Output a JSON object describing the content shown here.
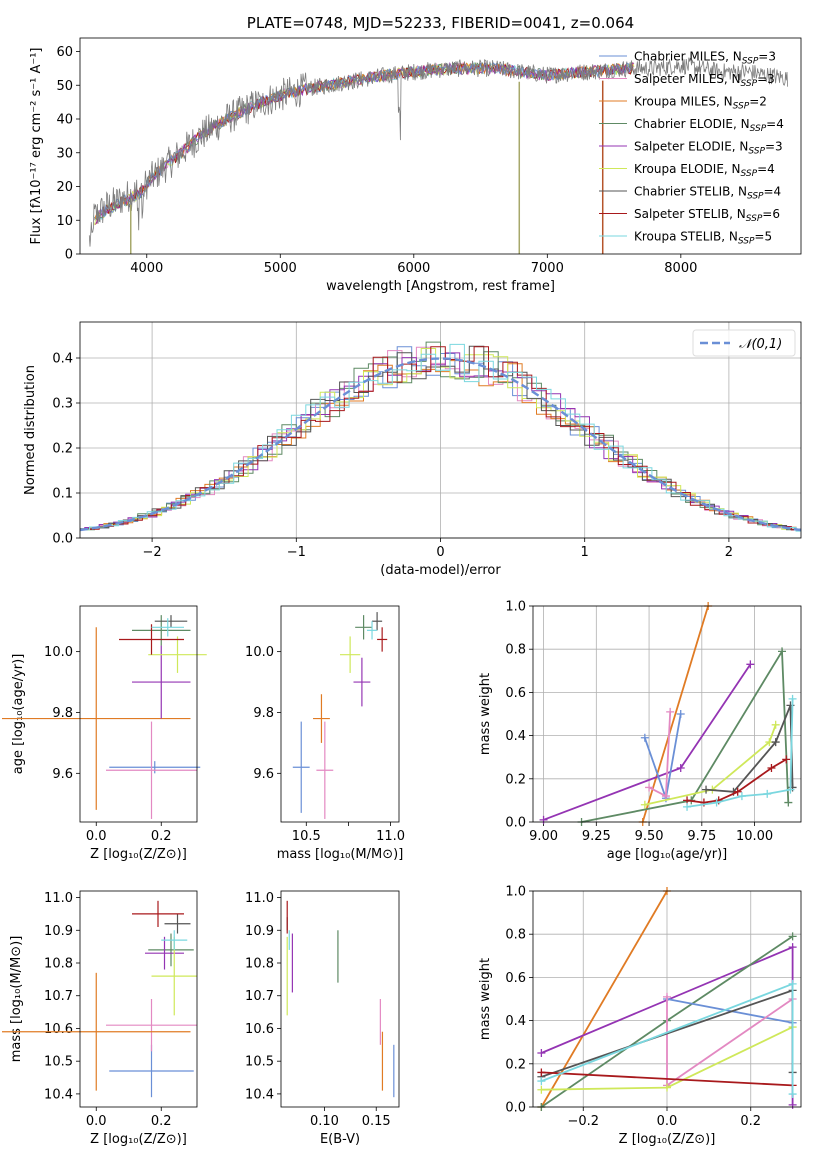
{
  "colors": {
    "Chabrier MILES": "#6a8fd6",
    "Salpeter MILES": "#e389c2",
    "Kroupa MILES": "#e07b24",
    "Chabrier ELODIE": "#5e8a64",
    "Salpeter ELODIE": "#9434b3",
    "Kroupa ELODIE": "#cfe85a",
    "Chabrier STELIB": "#555555",
    "Salpeter STELIB": "#a8191c",
    "Kroupa STELIB": "#7ad7df"
  },
  "chart_data": [
    {
      "id": "spectrum",
      "type": "line",
      "title": "PLATE=0748, MJD=52233, FIBERID=0041, z=0.064",
      "xlabel": "wavelength [Angstrom, rest frame]",
      "ylabel": "Flux [fλ10⁻¹⁷ erg cm⁻² s⁻¹ A⁻¹]",
      "xlim": [
        3500,
        8900
      ],
      "ylim": [
        0,
        64
      ],
      "xticks": [
        4000,
        5000,
        6000,
        7000,
        8000
      ],
      "yticks": [
        0,
        10,
        20,
        30,
        40,
        50,
        60
      ],
      "legend_position": "right",
      "legend": [
        {
          "label": "Chabrier MILES, N",
          "sub": "SSP",
          "n": "=3"
        },
        {
          "label": "Salpeter MILES, N",
          "sub": "SSP",
          "n": "=3"
        },
        {
          "label": "Kroupa MILES, N",
          "sub": "SSP",
          "n": "=2"
        },
        {
          "label": "Chabrier ELODIE, N",
          "sub": "SSP",
          "n": "=4"
        },
        {
          "label": "Salpeter ELODIE, N",
          "sub": "SSP",
          "n": "=3"
        },
        {
          "label": "Kroupa ELODIE, N",
          "sub": "SSP",
          "n": "=4"
        },
        {
          "label": "Chabrier STELIB, N",
          "sub": "SSP",
          "n": "=4"
        },
        {
          "label": "Salpeter STELIB, N",
          "sub": "SSP",
          "n": "=6"
        },
        {
          "label": "Kroupa STELIB, N",
          "sub": "SSP",
          "n": "=5"
        }
      ],
      "continuum": [
        [
          3570,
          10
        ],
        [
          3700,
          14
        ],
        [
          3850,
          17
        ],
        [
          3950,
          19
        ],
        [
          4050,
          23
        ],
        [
          4200,
          28
        ],
        [
          4400,
          35
        ],
        [
          4600,
          40
        ],
        [
          4800,
          44
        ],
        [
          5000,
          47
        ],
        [
          5200,
          49
        ],
        [
          5500,
          51
        ],
        [
          5800,
          53
        ],
        [
          6000,
          54
        ],
        [
          6300,
          55
        ],
        [
          6600,
          55
        ],
        [
          7000,
          53
        ],
        [
          7300,
          54
        ],
        [
          7600,
          55
        ],
        [
          7800,
          55
        ],
        [
          8000,
          56
        ],
        [
          8300,
          54
        ],
        [
          8500,
          54
        ],
        [
          8800,
          52
        ]
      ]
    },
    {
      "id": "residual-histogram",
      "type": "histogram",
      "xlabel": "(data-model)/error",
      "ylabel": "Normed distribution",
      "xlim": [
        -2.5,
        2.5
      ],
      "ylim": [
        0,
        0.48
      ],
      "xticks": [
        -2,
        -1,
        0,
        1,
        2
      ],
      "yticks": [
        0.0,
        0.1,
        0.2,
        0.3,
        0.4
      ],
      "grid": true,
      "legend_position": "top-right",
      "reference_curve": {
        "label": "𝒩(0,1)",
        "mean": 0,
        "sigma": 1
      }
    },
    {
      "id": "Z-vs-age",
      "type": "errorbar",
      "xlabel": "Z [log₁₀(Z/Z⊙)]",
      "ylabel": "age  [log₁₀(age/yr)]",
      "xlim": [
        -0.05,
        0.31
      ],
      "ylim": [
        9.44,
        10.15
      ],
      "xticks": [
        0.0,
        0.2
      ],
      "yticks": [
        9.6,
        9.8,
        10.0
      ],
      "points": [
        {
          "model": "Chabrier MILES",
          "x": 0.18,
          "y": 9.62,
          "xerr": 0.14,
          "yerr": 0.02
        },
        {
          "model": "Salpeter MILES",
          "x": 0.17,
          "y": 9.61,
          "xerr": 0.14,
          "yerr": 0.16
        },
        {
          "model": "Kroupa MILES",
          "x": 0.0,
          "y": 9.78,
          "xerr": 0.29,
          "yerr": 0.3
        },
        {
          "model": "Chabrier ELODIE",
          "x": 0.2,
          "y": 10.07,
          "xerr": 0.09,
          "yerr": 0.05
        },
        {
          "model": "Salpeter ELODIE",
          "x": 0.2,
          "y": 9.9,
          "xerr": 0.09,
          "yerr": 0.12
        },
        {
          "model": "Kroupa ELODIE",
          "x": 0.25,
          "y": 9.99,
          "xerr": 0.09,
          "yerr": 0.06
        },
        {
          "model": "Chabrier STELIB",
          "x": 0.23,
          "y": 10.1,
          "xerr": 0.05,
          "yerr": 0.02
        },
        {
          "model": "Salpeter STELIB",
          "x": 0.17,
          "y": 10.04,
          "xerr": 0.1,
          "yerr": 0.05
        },
        {
          "model": "Kroupa STELIB",
          "x": 0.22,
          "y": 10.08,
          "xerr": 0.05,
          "yerr": 0.03
        }
      ]
    },
    {
      "id": "mass-vs-age",
      "type": "errorbar",
      "xlabel": "mass [log₁₀(M/M⊙)]",
      "ylabel": "",
      "xlim": [
        10.35,
        11.05
      ],
      "ylim": [
        9.44,
        10.15
      ],
      "xticks": [
        10.5,
        10.75,
        11.0
      ],
      "xtick_labels": [
        "10.5",
        "",
        "11.0"
      ],
      "yticks": [
        9.6,
        9.8,
        10.0
      ],
      "points": [
        {
          "model": "Chabrier MILES",
          "x": 10.47,
          "y": 9.62,
          "xerr": 0.05,
          "yerr": 0.15
        },
        {
          "model": "Salpeter MILES",
          "x": 10.61,
          "y": 9.61,
          "xerr": 0.05,
          "yerr": 0.16
        },
        {
          "model": "Kroupa MILES",
          "x": 10.59,
          "y": 9.78,
          "xerr": 0.05,
          "yerr": 0.08
        },
        {
          "model": "Chabrier ELODIE",
          "x": 10.84,
          "y": 10.08,
          "xerr": 0.05,
          "yerr": 0.04
        },
        {
          "model": "Salpeter ELODIE",
          "x": 10.83,
          "y": 9.9,
          "xerr": 0.05,
          "yerr": 0.08
        },
        {
          "model": "Kroupa ELODIE",
          "x": 10.76,
          "y": 9.99,
          "xerr": 0.06,
          "yerr": 0.06
        },
        {
          "model": "Chabrier STELIB",
          "x": 10.92,
          "y": 10.1,
          "xerr": 0.03,
          "yerr": 0.03
        },
        {
          "model": "Salpeter STELIB",
          "x": 10.95,
          "y": 10.04,
          "xerr": 0.03,
          "yerr": 0.04
        },
        {
          "model": "Kroupa STELIB",
          "x": 10.89,
          "y": 10.07,
          "xerr": 0.03,
          "yerr": 0.03
        }
      ]
    },
    {
      "id": "age-vs-weight",
      "type": "line",
      "xlabel": "age  [log₁₀(age/yr)]",
      "ylabel": "mass weight",
      "xlim": [
        8.95,
        10.22
      ],
      "ylim": [
        0,
        1.0
      ],
      "xticks": [
        9.0,
        9.25,
        9.5,
        9.75,
        10.0
      ],
      "yticks": [
        0.0,
        0.2,
        0.4,
        0.6,
        0.8,
        1.0
      ],
      "grid": true,
      "series": [
        {
          "model": "Kroupa MILES",
          "x": [
            9.47,
            9.78
          ],
          "y": [
            0.0,
            1.0
          ]
        },
        {
          "model": "Salpeter ELODIE",
          "x": [
            9.0,
            9.65,
            9.98
          ],
          "y": [
            0.01,
            0.25,
            0.73
          ]
        },
        {
          "model": "Chabrier ELODIE",
          "x": [
            9.18,
            9.7,
            10.13,
            10.16
          ],
          "y": [
            0.0,
            0.1,
            0.79,
            0.09
          ]
        },
        {
          "model": "Chabrier MILES",
          "x": [
            9.48,
            9.58,
            9.65
          ],
          "y": [
            0.39,
            0.11,
            0.5
          ]
        },
        {
          "model": "Salpeter MILES",
          "x": [
            9.5,
            9.58,
            9.6
          ],
          "y": [
            0.16,
            0.12,
            0.51
          ]
        },
        {
          "model": "Kroupa ELODIE",
          "x": [
            9.48,
            9.8,
            10.07,
            10.1
          ],
          "y": [
            0.08,
            0.15,
            0.37,
            0.45
          ]
        },
        {
          "model": "Chabrier STELIB",
          "x": [
            9.77,
            9.9,
            10.1,
            10.17,
            10.18
          ],
          "y": [
            0.15,
            0.14,
            0.37,
            0.54,
            0.16
          ]
        },
        {
          "model": "Salpeter STELIB",
          "x": [
            9.68,
            9.76,
            9.83,
            9.92,
            10.08,
            10.15
          ],
          "y": [
            0.1,
            0.09,
            0.1,
            0.14,
            0.25,
            0.29
          ]
        },
        {
          "model": "Kroupa STELIB",
          "x": [
            9.68,
            9.82,
            9.94,
            10.06,
            10.17,
            10.18
          ],
          "y": [
            0.07,
            0.09,
            0.12,
            0.13,
            0.15,
            0.57
          ]
        }
      ]
    },
    {
      "id": "Z-vs-mass",
      "type": "errorbar",
      "xlabel": "Z [log₁₀(Z/Z⊙)]",
      "ylabel": "mass [log₁₀(M/M⊙)]",
      "xlim": [
        -0.05,
        0.31
      ],
      "ylim": [
        10.36,
        11.02
      ],
      "xticks": [
        0.0,
        0.2
      ],
      "yticks": [
        10.4,
        10.5,
        10.6,
        10.7,
        10.8,
        10.9,
        11.0
      ],
      "points": [
        {
          "model": "Chabrier MILES",
          "x": 0.17,
          "y": 10.47,
          "xerr": 0.13,
          "yerr": 0.08
        },
        {
          "model": "Salpeter MILES",
          "x": 0.17,
          "y": 10.61,
          "xerr": 0.14,
          "yerr": 0.08
        },
        {
          "model": "Kroupa MILES",
          "x": 0.0,
          "y": 10.59,
          "xerr": 0.29,
          "yerr": 0.18
        },
        {
          "model": "Chabrier ELODIE",
          "x": 0.23,
          "y": 10.84,
          "xerr": 0.07,
          "yerr": 0.05
        },
        {
          "model": "Salpeter ELODIE",
          "x": 0.21,
          "y": 10.83,
          "xerr": 0.06,
          "yerr": 0.05
        },
        {
          "model": "Kroupa ELODIE",
          "x": 0.24,
          "y": 10.76,
          "xerr": 0.07,
          "yerr": 0.12
        },
        {
          "model": "Chabrier STELIB",
          "x": 0.25,
          "y": 10.92,
          "xerr": 0.04,
          "yerr": 0.03
        },
        {
          "model": "Salpeter STELIB",
          "x": 0.19,
          "y": 10.95,
          "xerr": 0.08,
          "yerr": 0.04
        },
        {
          "model": "Kroupa STELIB",
          "x": 0.24,
          "y": 10.87,
          "xerr": 0.04,
          "yerr": 0.03
        }
      ]
    },
    {
      "id": "EBV-vs-mass",
      "type": "errorbar",
      "xlabel": "E(B-V)",
      "ylabel": "",
      "xlim": [
        0.058,
        0.172
      ],
      "ylim": [
        10.36,
        11.02
      ],
      "xticks": [
        0.1,
        0.15
      ],
      "yticks": [
        10.4,
        10.5,
        10.6,
        10.7,
        10.8,
        10.9,
        11.0
      ],
      "points": [
        {
          "model": "Chabrier MILES",
          "x": 0.167,
          "y": 10.47,
          "xerr": 0,
          "yerr": 0.08
        },
        {
          "model": "Salpeter MILES",
          "x": 0.154,
          "y": 10.62,
          "xerr": 0,
          "yerr": 0.07
        },
        {
          "model": "Kroupa MILES",
          "x": 0.156,
          "y": 10.5,
          "xerr": 0,
          "yerr": 0.09
        },
        {
          "model": "Chabrier ELODIE",
          "x": 0.113,
          "y": 10.82,
          "xerr": 0,
          "yerr": 0.08
        },
        {
          "model": "Salpeter ELODIE",
          "x": 0.069,
          "y": 10.8,
          "xerr": 0,
          "yerr": 0.09
        },
        {
          "model": "Kroupa ELODIE",
          "x": 0.064,
          "y": 10.76,
          "xerr": 0,
          "yerr": 0.12
        },
        {
          "model": "Chabrier STELIB",
          "x": 0.064,
          "y": 10.92,
          "xerr": 0,
          "yerr": 0.02
        },
        {
          "model": "Salpeter STELIB",
          "x": 0.064,
          "y": 10.94,
          "xerr": 0,
          "yerr": 0.05
        },
        {
          "model": "Kroupa STELIB",
          "x": 0.066,
          "y": 10.87,
          "xerr": 0,
          "yerr": 0.03
        }
      ]
    },
    {
      "id": "Z-vs-weight",
      "type": "line",
      "xlabel": "Z [log₁₀(Z/Z⊙)]",
      "ylabel": "mass weight",
      "xlim": [
        -0.32,
        0.32
      ],
      "ylim": [
        0,
        1.0
      ],
      "xticks": [
        -0.2,
        0.0,
        0.2
      ],
      "yticks": [
        0.0,
        0.2,
        0.4,
        0.6,
        0.8,
        1.0
      ],
      "grid": true,
      "series": [
        {
          "model": "Kroupa MILES",
          "x": [
            -0.3,
            0.0
          ],
          "y": [
            0.0,
            1.0
          ]
        },
        {
          "model": "Salpeter ELODIE",
          "x": [
            -0.3,
            0.3,
            0.3
          ],
          "y": [
            0.25,
            0.74,
            0.01
          ]
        },
        {
          "model": "Chabrier ELODIE",
          "x": [
            -0.3,
            0.0,
            0.3
          ],
          "y": [
            0.0,
            0.4,
            0.79
          ]
        },
        {
          "model": "Chabrier MILES",
          "x": [
            0.0,
            0.3
          ],
          "y": [
            0.5,
            0.39
          ]
        },
        {
          "model": "Salpeter MILES",
          "x": [
            0.0,
            0.0,
            0.3
          ],
          "y": [
            0.51,
            0.1,
            0.5
          ]
        },
        {
          "model": "Kroupa ELODIE",
          "x": [
            -0.3,
            0.0,
            0.3
          ],
          "y": [
            0.08,
            0.09,
            0.37
          ]
        },
        {
          "model": "Chabrier STELIB",
          "x": [
            -0.3,
            0.3,
            0.3
          ],
          "y": [
            0.14,
            0.54,
            0.16
          ]
        },
        {
          "model": "Salpeter STELIB",
          "x": [
            -0.3,
            0.3
          ],
          "y": [
            0.16,
            0.1
          ]
        },
        {
          "model": "Kroupa STELIB",
          "x": [
            -0.3,
            0.3,
            0.3
          ],
          "y": [
            0.12,
            0.57,
            0.06
          ]
        }
      ]
    }
  ]
}
